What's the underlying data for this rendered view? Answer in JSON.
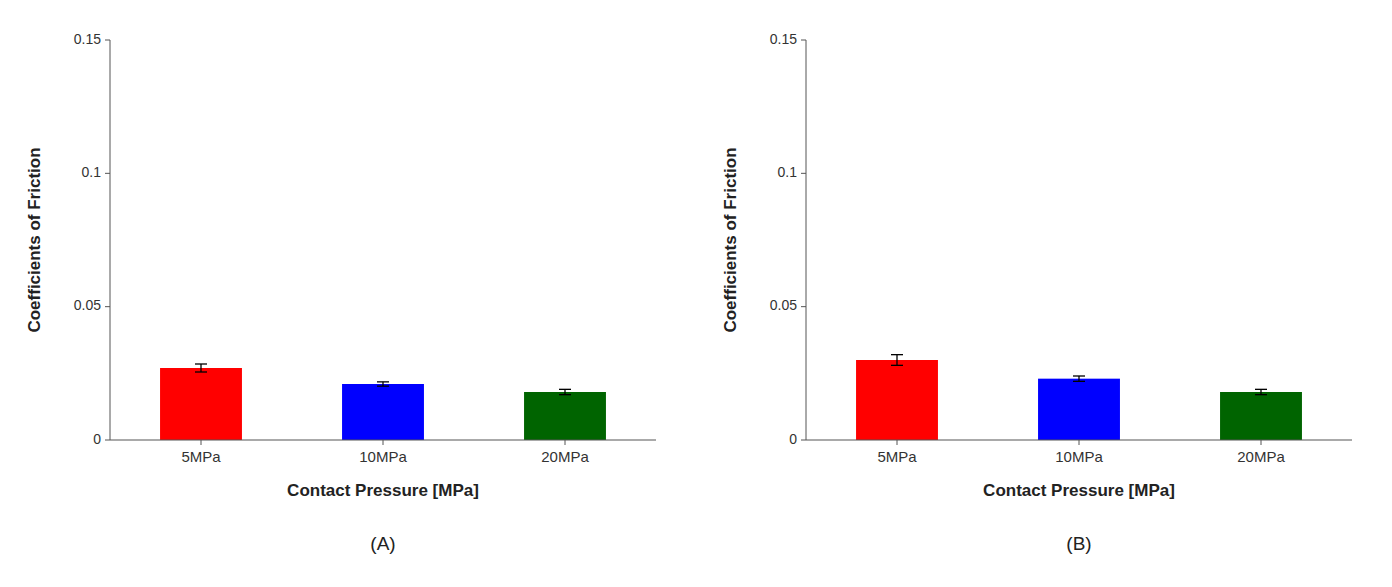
{
  "chart_data": [
    {
      "type": "bar",
      "title": "(A)",
      "categories": [
        "5MPa",
        "10MPa",
        "20MPa"
      ],
      "values": [
        0.027,
        0.021,
        0.018
      ],
      "errors": [
        0.0015,
        0.0008,
        0.001
      ],
      "colors": [
        "#ff0000",
        "#0000ff",
        "#006400"
      ],
      "xlabel": "Contact Pressure [MPa]",
      "ylabel": "Coefficients of Friction",
      "ylim": [
        0,
        0.15
      ],
      "yticks": [
        0,
        0.05,
        0.1,
        0.15
      ],
      "grid": false
    },
    {
      "type": "bar",
      "title": "(B)",
      "categories": [
        "5MPa",
        "10MPa",
        "20MPa"
      ],
      "values": [
        0.03,
        0.023,
        0.018
      ],
      "errors": [
        0.002,
        0.001,
        0.001
      ],
      "colors": [
        "#ff0000",
        "#0000ff",
        "#006400"
      ],
      "xlabel": "Contact Pressure [MPa]",
      "ylabel": "Coefficients of Friction",
      "ylim": [
        0,
        0.15
      ],
      "yticks": [
        0,
        0.05,
        0.1,
        0.15
      ],
      "grid": false
    }
  ]
}
